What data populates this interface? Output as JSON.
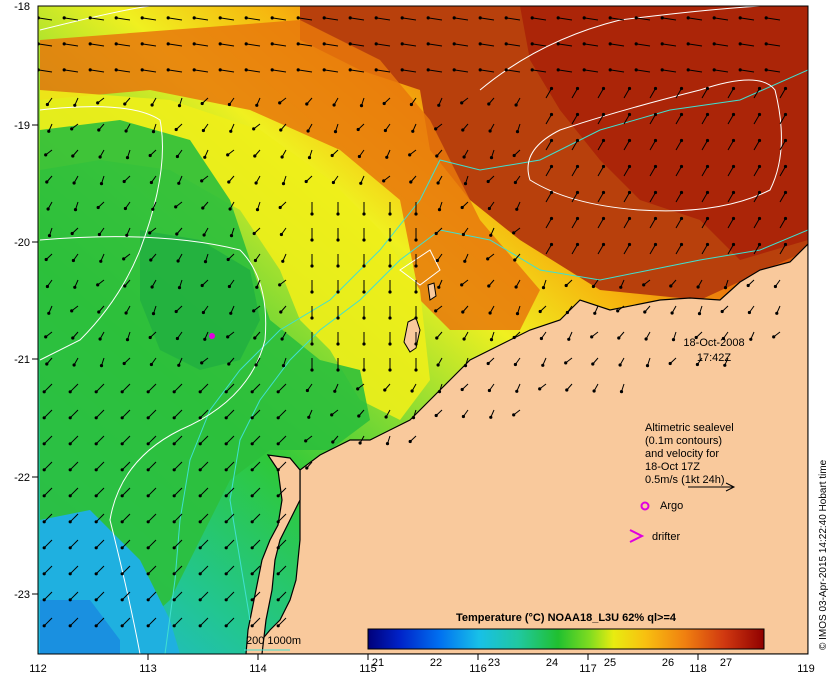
{
  "map": {
    "lon_ticks": [
      "112",
      "113",
      "114",
      "115",
      "116",
      "117",
      "118",
      "119"
    ],
    "lat_ticks": [
      "-18",
      "-19",
      "-20",
      "-21",
      "-22",
      "-23"
    ],
    "date": "18-Oct-2008",
    "time": "17:42Z",
    "legend_lines": [
      "Altimetric sealevel",
      "(0.1m contours)",
      "and velocity for",
      "18-Oct 17Z",
      "0.5m/s (1kt 24h)"
    ],
    "argo_label": "Argo",
    "drifter_label": "drifter",
    "bathymetry_label": "200  1000m",
    "credit": "© IMOS 03-Apr-2015 14:22:40 Hobart time",
    "colorbar": {
      "title": "Temperature (°C) NOAA18_L3U 62% ql>=4",
      "labels": [
        "21",
        "22",
        "23",
        "24",
        "25",
        "26",
        "27"
      ]
    },
    "colors": {
      "land": "#f9c99c",
      "contour": "#ffffff",
      "bathymetry": "#40e0d0",
      "argo": "#e000e0",
      "drifter": "#e000e0"
    }
  }
}
